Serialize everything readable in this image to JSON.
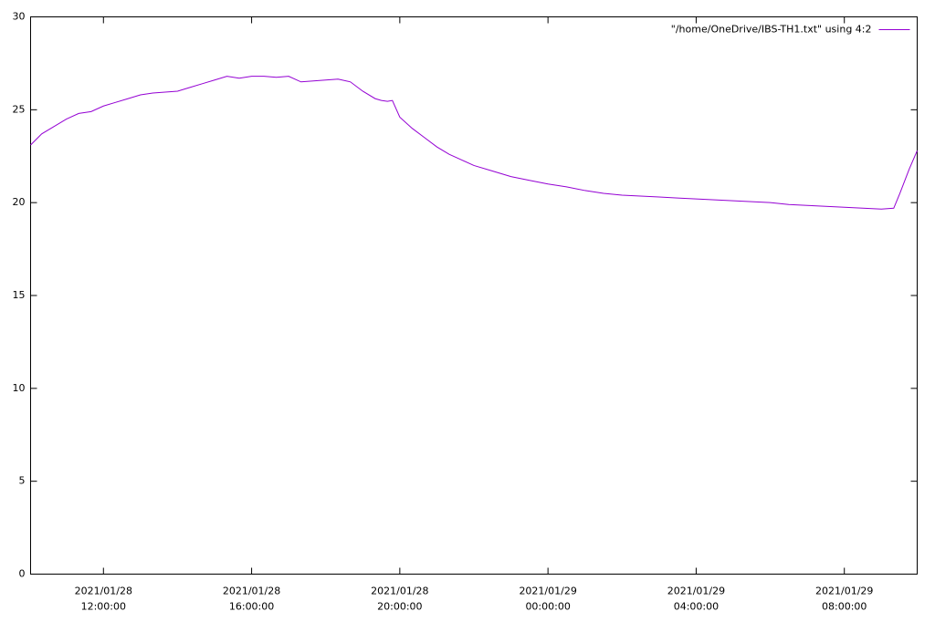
{
  "chart_data": {
    "type": "line",
    "x": [
      "2021/01/28 10:02:00",
      "2021/01/28 10:20:00",
      "2021/01/28 10:40:00",
      "2021/01/28 11:00:00",
      "2021/01/28 11:20:00",
      "2021/01/28 11:40:00",
      "2021/01/28 12:00:00",
      "2021/01/28 12:20:00",
      "2021/01/28 12:40:00",
      "2021/01/28 13:00:00",
      "2021/01/28 13:20:00",
      "2021/01/28 13:40:00",
      "2021/01/28 14:00:00",
      "2021/01/28 14:20:00",
      "2021/01/28 14:40:00",
      "2021/01/28 15:00:00",
      "2021/01/28 15:20:00",
      "2021/01/28 15:40:00",
      "2021/01/28 16:00:00",
      "2021/01/28 16:20:00",
      "2021/01/28 16:40:00",
      "2021/01/28 17:00:00",
      "2021/01/28 17:20:00",
      "2021/01/28 17:40:00",
      "2021/01/28 18:00:00",
      "2021/01/28 18:20:00",
      "2021/01/28 18:40:00",
      "2021/01/28 19:00:00",
      "2021/01/28 19:20:00",
      "2021/01/28 19:30:00",
      "2021/01/28 19:40:00",
      "2021/01/28 19:48:00",
      "2021/01/28 20:00:00",
      "2021/01/28 20:20:00",
      "2021/01/28 20:40:00",
      "2021/01/28 21:00:00",
      "2021/01/28 21:20:00",
      "2021/01/28 21:40:00",
      "2021/01/28 22:00:00",
      "2021/01/28 22:30:00",
      "2021/01/28 23:00:00",
      "2021/01/28 23:30:00",
      "2021/01/29 00:00:00",
      "2021/01/29 00:30:00",
      "2021/01/29 01:00:00",
      "2021/01/29 01:30:00",
      "2021/01/29 02:00:00",
      "2021/01/29 02:30:00",
      "2021/01/29 03:00:00",
      "2021/01/29 03:30:00",
      "2021/01/29 04:00:00",
      "2021/01/29 04:30:00",
      "2021/01/29 05:00:00",
      "2021/01/29 05:30:00",
      "2021/01/29 06:00:00",
      "2021/01/29 06:30:00",
      "2021/01/29 07:00:00",
      "2021/01/29 07:30:00",
      "2021/01/29 08:00:00",
      "2021/01/29 08:30:00",
      "2021/01/29 09:00:00",
      "2021/01/29 09:20:00",
      "2021/01/29 09:30:00",
      "2021/01/29 09:45:00",
      "2021/01/29 09:58:00"
    ],
    "series": [
      {
        "name": "\"/home/OneDrive/IBS-TH1.txt\" using 4:2",
        "color": "#9400d3",
        "values": [
          23.1,
          23.7,
          24.1,
          24.5,
          24.8,
          24.9,
          25.2,
          25.4,
          25.6,
          25.8,
          25.9,
          25.95,
          26.0,
          26.2,
          26.4,
          26.6,
          26.8,
          26.7,
          26.8,
          26.8,
          26.75,
          26.8,
          26.5,
          26.55,
          26.6,
          26.65,
          26.5,
          26.0,
          25.6,
          25.5,
          25.45,
          25.5,
          24.6,
          24.0,
          23.5,
          23.0,
          22.6,
          22.3,
          22.0,
          21.7,
          21.4,
          21.2,
          21.0,
          20.85,
          20.65,
          20.5,
          20.4,
          20.35,
          20.3,
          20.25,
          20.2,
          20.15,
          20.1,
          20.05,
          20.0,
          19.9,
          19.85,
          19.8,
          19.75,
          19.7,
          19.65,
          19.7,
          20.5,
          21.8,
          22.8
        ]
      }
    ],
    "xlim": [
      "2021/01/28 10:02:00",
      "2021/01/29 09:58:00"
    ],
    "xticks": [
      "2021/01/28 12:00:00",
      "2021/01/28 16:00:00",
      "2021/01/28 20:00:00",
      "2021/01/29 00:00:00",
      "2021/01/29 04:00:00",
      "2021/01/29 08:00:00"
    ],
    "ylim": [
      0,
      30
    ],
    "yticks": [
      0,
      5,
      10,
      15,
      20,
      25,
      30
    ],
    "legend": "top-right"
  }
}
